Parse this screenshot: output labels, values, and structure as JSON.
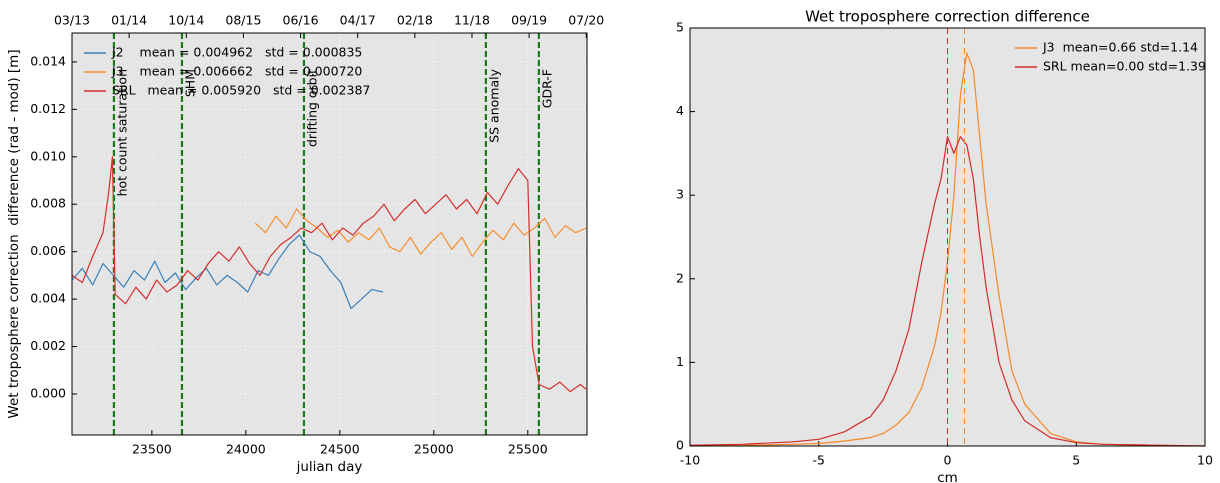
{
  "chart_data": [
    {
      "type": "line",
      "xlabel": "julian day",
      "ylabel": "Wet troposphere correction  difference (rad - mod) [m]",
      "xlim": [
        23075,
        25815
      ],
      "ylim": [
        -0.00173,
        0.01522
      ],
      "xticks": [
        23500,
        24000,
        24500,
        25000,
        25500
      ],
      "yticks": [
        {
          "value": 0,
          "label": "0.000"
        },
        {
          "value": 0.002,
          "label": "0.002"
        },
        {
          "value": 0.004,
          "label": "0.004"
        },
        {
          "value": 0.006,
          "label": "0.006"
        },
        {
          "value": 0.008,
          "label": "0.008"
        },
        {
          "value": 0.01,
          "label": "0.010"
        },
        {
          "value": 0.012,
          "label": "0.012"
        },
        {
          "value": 0.014,
          "label": "0.014"
        }
      ],
      "x2ticks": [
        {
          "value": 23075,
          "label": "03/13"
        },
        {
          "value": 23379,
          "label": "01/14"
        },
        {
          "value": 23683,
          "label": "10/14"
        },
        {
          "value": 23987,
          "label": "08/15"
        },
        {
          "value": 24291,
          "label": "06/16"
        },
        {
          "value": 24595,
          "label": "04/17"
        },
        {
          "value": 24899,
          "label": "02/18"
        },
        {
          "value": 25203,
          "label": "11/18"
        },
        {
          "value": 25507,
          "label": "09/19"
        },
        {
          "value": 25811,
          "label": "07/20"
        }
      ],
      "grid": true,
      "legend": "upper left",
      "events": [
        {
          "x": 23298,
          "label": "hot count saturation"
        },
        {
          "x": 23660,
          "label": "SHM"
        },
        {
          "x": 24309,
          "label": "drifting orbit"
        },
        {
          "x": 25277,
          "label": "SS anomaly"
        },
        {
          "x": 25559,
          "label": "GDR-F"
        }
      ],
      "event_color": "#1a7a1a",
      "series": [
        {
          "name": "J2    mean = 0.004962   std = 0.000835",
          "color": "#3b80b9",
          "x": [
            23075,
            23130,
            23185,
            23240,
            23295,
            23350,
            23405,
            23460,
            23515,
            23570,
            23625,
            23680,
            23735,
            23790,
            23845,
            23900,
            23955,
            24010,
            24065,
            24120,
            24175,
            24230,
            24285,
            24340,
            24395,
            24450,
            24505,
            24560,
            24615,
            24670,
            24730
          ],
          "values": [
            0.0048,
            0.0053,
            0.0046,
            0.0055,
            0.005,
            0.0045,
            0.0052,
            0.0048,
            0.0056,
            0.0047,
            0.0051,
            0.0044,
            0.0049,
            0.0053,
            0.0046,
            0.005,
            0.0047,
            0.0043,
            0.0052,
            0.005,
            0.0057,
            0.0063,
            0.0067,
            0.006,
            0.0058,
            0.0052,
            0.0047,
            0.0036,
            0.004,
            0.0044,
            0.0043
          ]
        },
        {
          "name": "J3    mean = 0.006662   std = 0.000720",
          "color": "#f7902e",
          "x": [
            24050,
            24105,
            24160,
            24215,
            24270,
            24325,
            24380,
            24435,
            24490,
            24545,
            24600,
            24655,
            24710,
            24765,
            24820,
            24875,
            24930,
            24985,
            25040,
            25095,
            25150,
            25205,
            25260,
            25315,
            25370,
            25425,
            25480,
            25535,
            25590,
            25645,
            25700,
            25755,
            25810
          ],
          "values": [
            0.0072,
            0.0068,
            0.0075,
            0.007,
            0.0078,
            0.0073,
            0.007,
            0.0066,
            0.0069,
            0.0064,
            0.0068,
            0.0065,
            0.007,
            0.0062,
            0.006,
            0.0066,
            0.0059,
            0.0064,
            0.0068,
            0.0061,
            0.0066,
            0.0058,
            0.0064,
            0.0069,
            0.0065,
            0.0072,
            0.0067,
            0.007,
            0.0074,
            0.0066,
            0.0071,
            0.0068,
            0.007
          ]
        },
        {
          "name": "SRL   mean = 0.005920   std = 0.002387",
          "color": "#d62f2f",
          "x": [
            23075,
            23130,
            23185,
            23240,
            23270,
            23290,
            23305,
            23360,
            23415,
            23470,
            23525,
            23580,
            23635,
            23690,
            23745,
            23800,
            23855,
            23910,
            23965,
            24020,
            24075,
            24130,
            24185,
            24240,
            24295,
            24350,
            24405,
            24460,
            24515,
            24570,
            24625,
            24680,
            24735,
            24790,
            24845,
            24900,
            24955,
            25010,
            25065,
            25120,
            25175,
            25230,
            25285,
            25340,
            25395,
            25450,
            25500,
            25525,
            25560,
            25615,
            25670,
            25725,
            25780,
            25810
          ],
          "values": [
            0.005,
            0.0047,
            0.0058,
            0.0068,
            0.0085,
            0.01,
            0.0042,
            0.0038,
            0.0045,
            0.004,
            0.0048,
            0.0043,
            0.0046,
            0.0052,
            0.0048,
            0.0055,
            0.006,
            0.0056,
            0.0062,
            0.0055,
            0.005,
            0.0058,
            0.0063,
            0.0066,
            0.007,
            0.0068,
            0.0072,
            0.0065,
            0.007,
            0.0067,
            0.0072,
            0.0075,
            0.008,
            0.0073,
            0.0078,
            0.0082,
            0.0076,
            0.008,
            0.0084,
            0.0078,
            0.0082,
            0.0076,
            0.0085,
            0.008,
            0.0088,
            0.0095,
            0.009,
            0.002,
            0.0004,
            0.0002,
            0.0005,
            0.0001,
            0.0004,
            0.0002
          ]
        }
      ]
    },
    {
      "type": "line",
      "title": "Wet troposphere correction difference",
      "xlabel": "cm",
      "xlim": [
        -10,
        10
      ],
      "ylim": [
        0,
        5
      ],
      "xticks": [
        -10,
        -5,
        0,
        5,
        10
      ],
      "yticks": [
        0,
        1,
        2,
        3,
        4,
        5
      ],
      "grid": false,
      "legend": "upper right",
      "x": [
        -10,
        -8,
        -6,
        -5,
        -4,
        -3,
        -2.5,
        -2,
        -1.5,
        -1,
        -0.5,
        -0.25,
        0,
        0.25,
        0.5,
        0.75,
        1,
        1.25,
        1.5,
        2,
        2.5,
        3,
        4,
        5,
        6,
        8,
        10
      ],
      "series": [
        {
          "name": "J3  mean=0.66 std=1.14",
          "color": "#f4892a",
          "values": [
            0,
            0.01,
            0.02,
            0.03,
            0.06,
            0.1,
            0.15,
            0.25,
            0.4,
            0.7,
            1.2,
            1.6,
            2.2,
            3.0,
            4.2,
            4.7,
            4.5,
            3.7,
            2.9,
            1.8,
            0.9,
            0.5,
            0.15,
            0.05,
            0.02,
            0.01,
            0
          ]
        },
        {
          "name": "SRL mean=0.00 std=1.39",
          "color": "#d12c2c",
          "values": [
            0.01,
            0.02,
            0.05,
            0.08,
            0.17,
            0.35,
            0.55,
            0.9,
            1.4,
            2.2,
            2.9,
            3.2,
            3.7,
            3.5,
            3.7,
            3.6,
            3.2,
            2.5,
            1.9,
            1.0,
            0.55,
            0.3,
            0.1,
            0.04,
            0.02,
            0.01,
            0
          ]
        }
      ],
      "vlines": [
        {
          "x": 0.66,
          "color": "#f4892a"
        },
        {
          "x": 0.0,
          "color": "#d12c2c"
        }
      ]
    }
  ]
}
